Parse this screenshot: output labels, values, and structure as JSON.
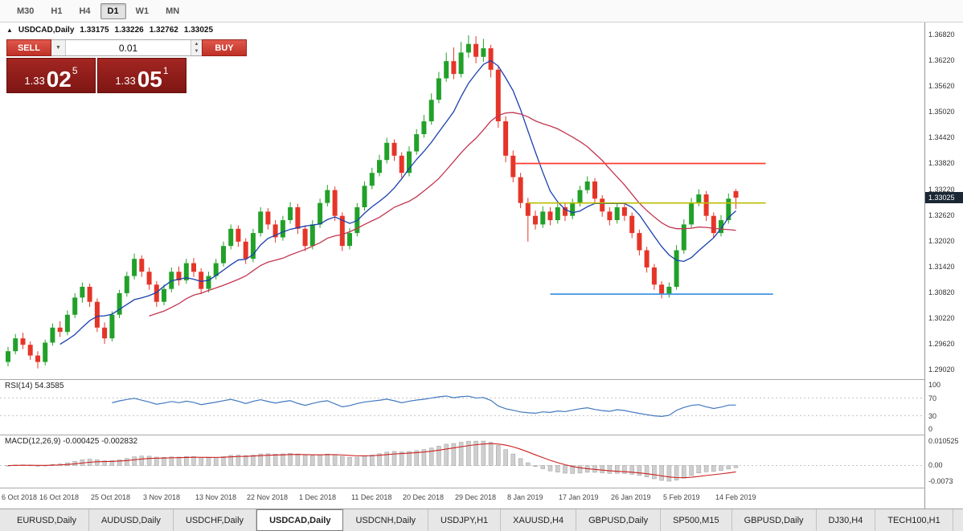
{
  "toolbar": {
    "timeframes": [
      {
        "label": "M30",
        "active": false
      },
      {
        "label": "H1",
        "active": false
      },
      {
        "label": "H4",
        "active": false
      },
      {
        "label": "D1",
        "active": true
      },
      {
        "label": "W1",
        "active": false
      },
      {
        "label": "MN",
        "active": false
      }
    ]
  },
  "chart_header": {
    "marker": "▲",
    "title": "USDCAD,Daily",
    "open": "1.33175",
    "high": "1.33226",
    "low": "1.32762",
    "close": "1.33025"
  },
  "trade_widget": {
    "sell_label": "SELL",
    "buy_label": "BUY",
    "volume": "0.01",
    "bid": {
      "prefix": "1.33",
      "big": "02",
      "sup": "5"
    },
    "ask": {
      "prefix": "1.33",
      "big": "05",
      "sup": "1"
    }
  },
  "price_axis": {
    "labels": [
      "1.36820",
      "1.36220",
      "1.35620",
      "1.35020",
      "1.34420",
      "1.33820",
      "1.33220",
      "1.32620",
      "1.32020",
      "1.31420",
      "1.30820",
      "1.30220",
      "1.29620",
      "1.29020"
    ],
    "badge": "1.33025"
  },
  "rsi_panel": {
    "label": "RSI(14) 54.3585",
    "levels": [
      "100",
      "70",
      "30",
      "0"
    ]
  },
  "macd_panel": {
    "label": "MACD(12,26,9) -0.000425 -0.002832",
    "scale": [
      "0.010525",
      "0.00",
      "-0.0073"
    ]
  },
  "tabs": [
    {
      "label": "EURUSD,Daily",
      "active": false
    },
    {
      "label": "AUDUSD,Daily",
      "active": false
    },
    {
      "label": "USDCHF,Daily",
      "active": false
    },
    {
      "label": "USDCAD,Daily",
      "active": true
    },
    {
      "label": "USDCNH,Daily",
      "active": false
    },
    {
      "label": "USDJPY,H1",
      "active": false
    },
    {
      "label": "XAUUSD,H4",
      "active": false
    },
    {
      "label": "GBPUSD,Daily",
      "active": false
    },
    {
      "label": "SP500,M15",
      "active": false
    },
    {
      "label": "GBPUSD,Daily",
      "active": false
    },
    {
      "label": "DJ30,H4",
      "active": false
    },
    {
      "label": "TECH100,H1",
      "active": false
    }
  ],
  "chart_data": {
    "type": "candlestick",
    "title": "USDCAD,Daily",
    "last_price": 1.33025,
    "price_grid_step": 0.006,
    "x_labels": [
      {
        "i": 0,
        "text": "6 Oct 2018"
      },
      {
        "i": 7,
        "text": "16 Oct 2018"
      },
      {
        "i": 14,
        "text": "25 Oct 2018"
      },
      {
        "i": 21,
        "text": "3 Nov 2018"
      },
      {
        "i": 28,
        "text": "13 Nov 2018"
      },
      {
        "i": 35,
        "text": "22 Nov 2018"
      },
      {
        "i": 42,
        "text": "1 Dec 2018"
      },
      {
        "i": 49,
        "text": "11 Dec 2018"
      },
      {
        "i": 56,
        "text": "20 Dec 2018"
      },
      {
        "i": 63,
        "text": "29 Dec 2018"
      },
      {
        "i": 70,
        "text": "8 Jan 2019"
      },
      {
        "i": 77,
        "text": "17 Jan 2019"
      },
      {
        "i": 84,
        "text": "26 Jan 2019"
      },
      {
        "i": 91,
        "text": "5 Feb 2019"
      },
      {
        "i": 98,
        "text": "14 Feb 2019"
      }
    ],
    "hlines": [
      {
        "price": 1.3382,
        "color": "#ff3b30",
        "from": 68,
        "to": 102
      },
      {
        "price": 1.329,
        "color": "#bdbd00",
        "from": 70,
        "to": 102
      },
      {
        "price": 1.3078,
        "color": "#4196e0",
        "from": 73,
        "to": 103
      }
    ],
    "colors": {
      "up": "#22a12a",
      "down": "#e53528",
      "ma_fast": "#1a3fae",
      "ma_slow": "#c23652",
      "rsi": "#4178be",
      "macd_hist": "#cfcfcf",
      "macd_signal": "#cc2020"
    },
    "ohlc": [
      [
        1.292,
        1.2955,
        1.291,
        1.2945
      ],
      [
        1.2945,
        1.2985,
        1.2938,
        1.2975
      ],
      [
        1.2975,
        1.2988,
        1.295,
        1.296
      ],
      [
        1.296,
        1.2968,
        1.2925,
        1.2935
      ],
      [
        1.2935,
        1.2945,
        1.2905,
        1.292
      ],
      [
        1.292,
        1.2972,
        1.2912,
        1.2965
      ],
      [
        1.2965,
        1.301,
        1.2958,
        1.3
      ],
      [
        1.3,
        1.3015,
        1.2978,
        1.299
      ],
      [
        1.299,
        1.304,
        1.2982,
        1.303
      ],
      [
        1.303,
        1.308,
        1.3022,
        1.307
      ],
      [
        1.307,
        1.3105,
        1.3058,
        1.3095
      ],
      [
        1.3095,
        1.3102,
        1.3048,
        1.306
      ],
      [
        1.306,
        1.3068,
        1.299,
        1.3
      ],
      [
        1.3,
        1.3012,
        1.2962,
        1.2975
      ],
      [
        1.2975,
        1.3038,
        1.2968,
        1.303
      ],
      [
        1.303,
        1.3088,
        1.3022,
        1.308
      ],
      [
        1.308,
        1.313,
        1.3072,
        1.312
      ],
      [
        1.312,
        1.3172,
        1.3112,
        1.316
      ],
      [
        1.316,
        1.3168,
        1.3118,
        1.313
      ],
      [
        1.313,
        1.314,
        1.3088,
        1.31
      ],
      [
        1.31,
        1.3108,
        1.3048,
        1.306
      ],
      [
        1.306,
        1.31,
        1.3052,
        1.309
      ],
      [
        1.309,
        1.314,
        1.3082,
        1.313
      ],
      [
        1.313,
        1.3142,
        1.3098,
        1.311
      ],
      [
        1.311,
        1.316,
        1.3102,
        1.315
      ],
      [
        1.315,
        1.3162,
        1.3118,
        1.313
      ],
      [
        1.313,
        1.3138,
        1.3078,
        1.309
      ],
      [
        1.309,
        1.313,
        1.3082,
        1.312
      ],
      [
        1.312,
        1.316,
        1.3112,
        1.315
      ],
      [
        1.315,
        1.32,
        1.3142,
        1.319
      ],
      [
        1.319,
        1.324,
        1.3182,
        1.323
      ],
      [
        1.323,
        1.3238,
        1.3188,
        1.32
      ],
      [
        1.32,
        1.3208,
        1.3148,
        1.316
      ],
      [
        1.316,
        1.323,
        1.3152,
        1.322
      ],
      [
        1.322,
        1.328,
        1.3212,
        1.327
      ],
      [
        1.327,
        1.3278,
        1.3228,
        1.324
      ],
      [
        1.324,
        1.325,
        1.3198,
        1.321
      ],
      [
        1.321,
        1.326,
        1.3202,
        1.325
      ],
      [
        1.325,
        1.3292,
        1.3242,
        1.328
      ],
      [
        1.328,
        1.3288,
        1.3218,
        1.323
      ],
      [
        1.323,
        1.3238,
        1.3178,
        1.319
      ],
      [
        1.319,
        1.325,
        1.3182,
        1.324
      ],
      [
        1.324,
        1.33,
        1.3232,
        1.329
      ],
      [
        1.329,
        1.3332,
        1.3282,
        1.332
      ],
      [
        1.332,
        1.3328,
        1.3248,
        1.326
      ],
      [
        1.326,
        1.3268,
        1.3178,
        1.319
      ],
      [
        1.319,
        1.3232,
        1.3182,
        1.322
      ],
      [
        1.322,
        1.329,
        1.3212,
        1.328
      ],
      [
        1.328,
        1.334,
        1.3272,
        1.333
      ],
      [
        1.333,
        1.3372,
        1.3322,
        1.336
      ],
      [
        1.336,
        1.3402,
        1.3352,
        1.339
      ],
      [
        1.339,
        1.3442,
        1.3382,
        1.343
      ],
      [
        1.343,
        1.3438,
        1.3388,
        1.34
      ],
      [
        1.34,
        1.3408,
        1.3348,
        1.336
      ],
      [
        1.336,
        1.3422,
        1.3352,
        1.341
      ],
      [
        1.341,
        1.3462,
        1.3402,
        1.345
      ],
      [
        1.345,
        1.3495,
        1.3442,
        1.348
      ],
      [
        1.348,
        1.3545,
        1.3472,
        1.353
      ],
      [
        1.353,
        1.3595,
        1.3522,
        1.358
      ],
      [
        1.358,
        1.364,
        1.3572,
        1.362
      ],
      [
        1.362,
        1.3652,
        1.3578,
        1.359
      ],
      [
        1.359,
        1.3665,
        1.3582,
        1.364
      ],
      [
        1.364,
        1.368,
        1.3628,
        1.366
      ],
      [
        1.366,
        1.3678,
        1.3615,
        1.363
      ],
      [
        1.363,
        1.3672,
        1.3618,
        1.365
      ],
      [
        1.365,
        1.3658,
        1.3582,
        1.36
      ],
      [
        1.36,
        1.361,
        1.3465,
        1.348
      ],
      [
        1.348,
        1.3492,
        1.3385,
        1.34
      ],
      [
        1.34,
        1.3412,
        1.3338,
        1.335
      ],
      [
        1.335,
        1.336,
        1.3278,
        1.329
      ],
      [
        1.329,
        1.3302,
        1.32,
        1.326
      ],
      [
        1.326,
        1.3272,
        1.3228,
        1.324
      ],
      [
        1.324,
        1.3282,
        1.3232,
        1.327
      ],
      [
        1.327,
        1.328,
        1.3238,
        1.325
      ],
      [
        1.325,
        1.329,
        1.3242,
        1.328
      ],
      [
        1.328,
        1.329,
        1.3248,
        1.326
      ],
      [
        1.326,
        1.33,
        1.3252,
        1.329
      ],
      [
        1.329,
        1.333,
        1.3282,
        1.332
      ],
      [
        1.332,
        1.3352,
        1.3312,
        1.334
      ],
      [
        1.334,
        1.3348,
        1.3288,
        1.33
      ],
      [
        1.33,
        1.3308,
        1.3258,
        1.327
      ],
      [
        1.327,
        1.328,
        1.3238,
        1.325
      ],
      [
        1.325,
        1.329,
        1.3242,
        1.328
      ],
      [
        1.328,
        1.3288,
        1.3248,
        1.326
      ],
      [
        1.326,
        1.3268,
        1.3208,
        1.322
      ],
      [
        1.322,
        1.3228,
        1.3168,
        1.318
      ],
      [
        1.318,
        1.3188,
        1.3128,
        1.314
      ],
      [
        1.314,
        1.3148,
        1.3088,
        1.31
      ],
      [
        1.31,
        1.3108,
        1.3068,
        1.3078
      ],
      [
        1.3078,
        1.3105,
        1.307,
        1.3095
      ],
      [
        1.3095,
        1.3192,
        1.3088,
        1.318
      ],
      [
        1.318,
        1.3252,
        1.3172,
        1.324
      ],
      [
        1.324,
        1.3302,
        1.3232,
        1.329
      ],
      [
        1.329,
        1.3322,
        1.3282,
        1.331
      ],
      [
        1.331,
        1.3318,
        1.3248,
        1.326
      ],
      [
        1.326,
        1.3268,
        1.3208,
        1.322
      ],
      [
        1.322,
        1.3262,
        1.3212,
        1.325
      ],
      [
        1.325,
        1.3312,
        1.3242,
        1.33
      ],
      [
        1.33175,
        1.33226,
        1.32762,
        1.33025
      ]
    ]
  }
}
